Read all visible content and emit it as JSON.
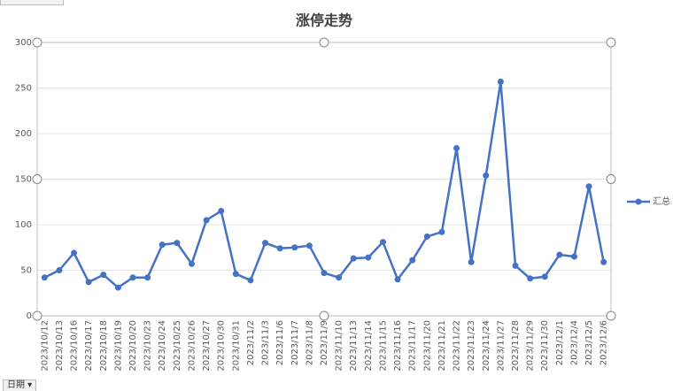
{
  "chart_data": {
    "type": "line",
    "title": "涨停走势",
    "categories": [
      "2023/10/12",
      "2023/10/13",
      "2023/10/16",
      "2023/10/17",
      "2023/10/18",
      "2023/10/19",
      "2023/10/20",
      "2023/10/23",
      "2023/10/24",
      "2023/10/25",
      "2023/10/26",
      "2023/10/27",
      "2023/10/30",
      "2023/10/31",
      "2023/11/2",
      "2023/11/3",
      "2023/11/6",
      "2023/11/7",
      "2023/11/8",
      "2023/11/9",
      "2023/11/10",
      "2023/11/13",
      "2023/11/14",
      "2023/11/15",
      "2023/11/16",
      "2023/11/17",
      "2023/11/20",
      "2023/11/21",
      "2023/11/22",
      "2023/11/23",
      "2023/11/24",
      "2023/11/27",
      "2023/11/28",
      "2023/11/29",
      "2023/11/30",
      "2023/12/1",
      "2023/12/4",
      "2023/12/5",
      "2023/12/6"
    ],
    "series": [
      {
        "name": "汇总",
        "color": "#4472c4",
        "values": [
          42,
          50,
          69,
          37,
          45,
          31,
          42,
          42,
          78,
          80,
          57,
          105,
          115,
          46,
          39,
          80,
          74,
          75,
          77,
          47,
          42,
          63,
          64,
          81,
          40,
          61,
          87,
          92,
          184,
          59,
          154,
          257,
          55,
          41,
          43,
          67,
          65,
          142,
          59
        ]
      }
    ],
    "ylim": [
      0,
      300
    ],
    "yticks": [
      0,
      50,
      100,
      150,
      200,
      250,
      300
    ],
    "grid": true,
    "legend": "right"
  },
  "field_button": "日期"
}
